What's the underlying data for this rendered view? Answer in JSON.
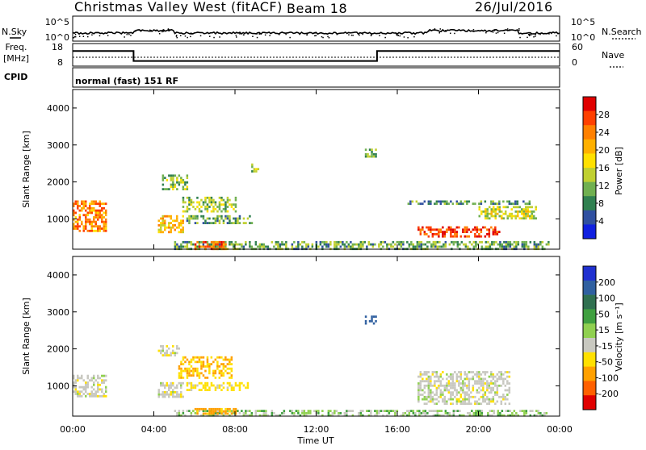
{
  "header": {
    "title": "Christmas Valley West (fitACF)",
    "beam": "Beam 18",
    "date": "26/Jul/2016"
  },
  "nsky_panel": {
    "left_label": "N.Sky",
    "right_label": "N.Search",
    "left_ticks": [
      "10^5",
      "10^0"
    ],
    "right_ticks": [
      "10^5",
      "10^0"
    ]
  },
  "freq_panel": {
    "left_label_1": "Freq.",
    "left_label_2": "[MHz]",
    "right_label": "Nave",
    "left_ticks": [
      "18",
      "8"
    ],
    "right_ticks": [
      "60",
      "0"
    ]
  },
  "cpid": {
    "label": "CPID",
    "mode": "normal (fast) 151 RF"
  },
  "power_colorbar": {
    "title": "Power [dB]",
    "ticks": [
      "28",
      "24",
      "20",
      "16",
      "12",
      "8",
      "4"
    ],
    "colors": [
      "#e00000",
      "#ff4000",
      "#ff8000",
      "#ffb000",
      "#ffe000",
      "#c0d030",
      "#70b050",
      "#308050",
      "#3050a0",
      "#1020e0"
    ]
  },
  "velocity_colorbar": {
    "title": "Velocity [m s⁻¹]",
    "ticks": [
      "200",
      "100",
      "50",
      "15",
      "-15",
      "-50",
      "-100",
      "-200"
    ],
    "colors": [
      "#2030d0",
      "#3060a0",
      "#307050",
      "#40a040",
      "#90d050",
      "#c8c8c0",
      "#ffe000",
      "#ffa000",
      "#ff6000",
      "#e00000"
    ]
  },
  "x_axis": {
    "label": "Time UT",
    "ticks": [
      "00:00",
      "04:00",
      "08:00",
      "12:00",
      "16:00",
      "20:00",
      "00:00"
    ]
  },
  "chart_data": [
    {
      "type": "heatmap",
      "name": "power",
      "ylabel": "Slant Range [km]",
      "yticks": [
        "1000",
        "2000",
        "3000",
        "4000"
      ],
      "xlim": [
        0,
        24
      ],
      "ylim": [
        180,
        4500
      ],
      "regions": [
        {
          "t": [
            0.0,
            1.6
          ],
          "r": [
            650,
            1500
          ],
          "power": 22
        },
        {
          "t": [
            4.2,
            5.4
          ],
          "r": [
            650,
            1100
          ],
          "power": 18
        },
        {
          "t": [
            5.4,
            8.0
          ],
          "r": [
            1200,
            1600
          ],
          "power": 12
        },
        {
          "t": [
            5.6,
            8.8
          ],
          "r": [
            900,
            1100
          ],
          "power": 10
        },
        {
          "t": [
            4.4,
            5.6
          ],
          "r": [
            1800,
            2200
          ],
          "power": 12
        },
        {
          "t": [
            8.8,
            9.1
          ],
          "r": [
            2300,
            2500
          ],
          "power": 12
        },
        {
          "t": [
            14.4,
            15.0
          ],
          "r": [
            2700,
            2900
          ],
          "power": 10
        },
        {
          "t": [
            16.5,
            22.5
          ],
          "r": [
            1400,
            1500
          ],
          "power": 8
        },
        {
          "t": [
            17.0,
            21.0
          ],
          "r": [
            500,
            800
          ],
          "power": 26
        },
        {
          "t": [
            20.0,
            22.8
          ],
          "r": [
            1000,
            1350
          ],
          "power": 14
        },
        {
          "t": [
            5.0,
            23.5
          ],
          "r": [
            180,
            400
          ],
          "power": 10
        },
        {
          "t": [
            6.0,
            7.5
          ],
          "r": [
            200,
            400
          ],
          "power": 24
        }
      ]
    },
    {
      "type": "heatmap",
      "name": "velocity",
      "ylabel": "Slant Range [km]",
      "yticks": [
        "1000",
        "2000",
        "3000",
        "4000"
      ],
      "xlim": [
        0,
        24
      ],
      "ylim": [
        180,
        4500
      ],
      "regions": [
        {
          "t": [
            0.0,
            1.6
          ],
          "r": [
            700,
            1300
          ],
          "velocity": 0
        },
        {
          "t": [
            4.2,
            5.4
          ],
          "r": [
            700,
            1100
          ],
          "velocity": 0
        },
        {
          "t": [
            5.2,
            7.8
          ],
          "r": [
            1200,
            1800
          ],
          "velocity": -50
        },
        {
          "t": [
            5.6,
            8.6
          ],
          "r": [
            900,
            1100
          ],
          "velocity": -30
        },
        {
          "t": [
            4.2,
            5.2
          ],
          "r": [
            1800,
            2100
          ],
          "velocity": 0
        },
        {
          "t": [
            14.4,
            15.0
          ],
          "r": [
            2700,
            2900
          ],
          "velocity": 120
        },
        {
          "t": [
            17.0,
            21.5
          ],
          "r": [
            500,
            1400
          ],
          "velocity": 0
        },
        {
          "t": [
            5.0,
            23.5
          ],
          "r": [
            180,
            350
          ],
          "velocity": 20
        },
        {
          "t": [
            6.0,
            8.0
          ],
          "r": [
            250,
            400
          ],
          "velocity": -60
        }
      ]
    },
    {
      "type": "line",
      "name": "freq",
      "x": [
        0,
        3.0,
        3.0,
        15.0,
        15.0,
        24
      ],
      "y": [
        14.7,
        14.7,
        10.3,
        10.3,
        14.7,
        14.7
      ],
      "ylim": [
        8,
        18
      ]
    }
  ]
}
